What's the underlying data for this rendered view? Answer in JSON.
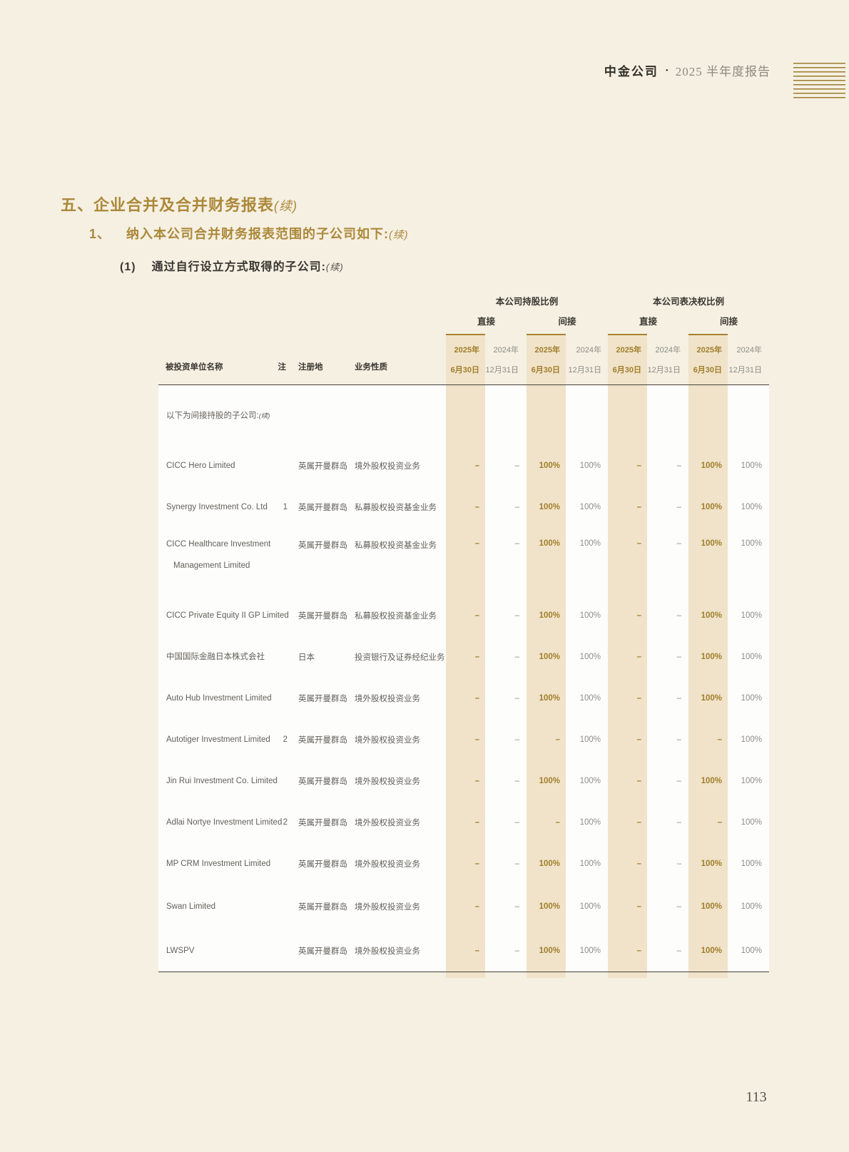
{
  "page_header": {
    "brand": "中金公司",
    "separator": "•",
    "report": "2025 半年度报告"
  },
  "headings": {
    "h1": "五、企业合并及合并财务报表",
    "h1_cont": "(续)",
    "h2_num": "1、",
    "h2": "纳入本公司合并财务报表范围的子公司如下:",
    "h2_cont": "(续)",
    "h3_num": "(1)",
    "h3": "通过自行设立方式取得的子公司:",
    "h3_cont": "(续)"
  },
  "table": {
    "col_headers": {
      "name": "被投资单位名称",
      "note": "注",
      "reg": "注册地",
      "business": "业务性质"
    },
    "group_headers": {
      "shareholding": "本公司持股比例",
      "voting": "本公司表决权比例"
    },
    "subgroup_headers": {
      "direct1": "直接",
      "indirect1": "间接",
      "direct2": "直接",
      "indirect2": "间接"
    },
    "period_current": {
      "line1": "2025年",
      "line2": "6月30日"
    },
    "period_prior": {
      "line1": "2024年",
      "line2": "12月31日"
    },
    "section_note": "以下为间接持股的子公司:",
    "section_note_cont": "(续)",
    "rows": [
      {
        "name": "CICC Hero Limited",
        "note": "",
        "reg": "英属开曼群岛",
        "business": "境外股权投资业务",
        "values": [
          "–",
          "–",
          "100%",
          "100%",
          "–",
          "–",
          "100%",
          "100%"
        ]
      },
      {
        "name": "Synergy Investment Co. Ltd",
        "note": "1",
        "reg": "英属开曼群岛",
        "business": "私募股权投资基金业务",
        "values": [
          "–",
          "–",
          "100%",
          "100%",
          "–",
          "–",
          "100%",
          "100%"
        ]
      },
      {
        "name": "CICC Healthcare Investment",
        "name2": "Management Limited",
        "note": "",
        "reg": "英属开曼群岛",
        "business": "私募股权投资基金业务",
        "values": [
          "–",
          "–",
          "100%",
          "100%",
          "–",
          "–",
          "100%",
          "100%"
        ]
      },
      {
        "name": "CICC Private Equity II GP Limited",
        "note": "",
        "reg": "英属开曼群岛",
        "business": "私募股权投资基金业务",
        "values": [
          "–",
          "–",
          "100%",
          "100%",
          "–",
          "–",
          "100%",
          "100%"
        ]
      },
      {
        "name": "中国国际金融日本株式会社",
        "note": "",
        "reg": "日本",
        "business": "投资银行及证券经纪业务",
        "values": [
          "–",
          "–",
          "100%",
          "100%",
          "–",
          "–",
          "100%",
          "100%"
        ]
      },
      {
        "name": "Auto Hub Investment Limited",
        "note": "",
        "reg": "英属开曼群岛",
        "business": "境外股权投资业务",
        "values": [
          "–",
          "–",
          "100%",
          "100%",
          "–",
          "–",
          "100%",
          "100%"
        ]
      },
      {
        "name": "Autotiger Investment Limited",
        "note": "2",
        "reg": "英属开曼群岛",
        "business": "境外股权投资业务",
        "values": [
          "–",
          "–",
          "–",
          "100%",
          "–",
          "–",
          "–",
          "100%"
        ]
      },
      {
        "name": "Jin Rui Investment Co. Limited",
        "note": "",
        "reg": "英属开曼群岛",
        "business": "境外股权投资业务",
        "values": [
          "–",
          "–",
          "100%",
          "100%",
          "–",
          "–",
          "100%",
          "100%"
        ]
      },
      {
        "name": "Adlai Nortye Investment Limited",
        "note": "2",
        "reg": "英属开曼群岛",
        "business": "境外股权投资业务",
        "values": [
          "–",
          "–",
          "–",
          "100%",
          "–",
          "–",
          "–",
          "100%"
        ]
      },
      {
        "name": "MP CRM Investment Limited",
        "note": "",
        "reg": "英属开曼群岛",
        "business": "境外股权投资业务",
        "values": [
          "–",
          "–",
          "100%",
          "100%",
          "–",
          "–",
          "100%",
          "100%"
        ]
      },
      {
        "name": "Swan Limited",
        "note": "",
        "reg": "英属开曼群岛",
        "business": "境外股权投资业务",
        "values": [
          "–",
          "–",
          "100%",
          "100%",
          "–",
          "–",
          "100%",
          "100%"
        ]
      },
      {
        "name": "LWSPV",
        "note": "",
        "reg": "英属开曼群岛",
        "business": "境外股权投资业务",
        "values": [
          "–",
          "–",
          "100%",
          "100%",
          "–",
          "–",
          "100%",
          "100%"
        ]
      }
    ]
  },
  "page_number": "113",
  "colors": {
    "page_background": "#f5f0e2",
    "table_background": "#fdfdfb",
    "highlight_column": "#f0e3ca",
    "gold_accent": "#a8832e",
    "gold_text": "#a17e2a",
    "gray_text": "#8e8c88",
    "dark_text": "#3a3631",
    "heading_gold": "#ac8839"
  }
}
